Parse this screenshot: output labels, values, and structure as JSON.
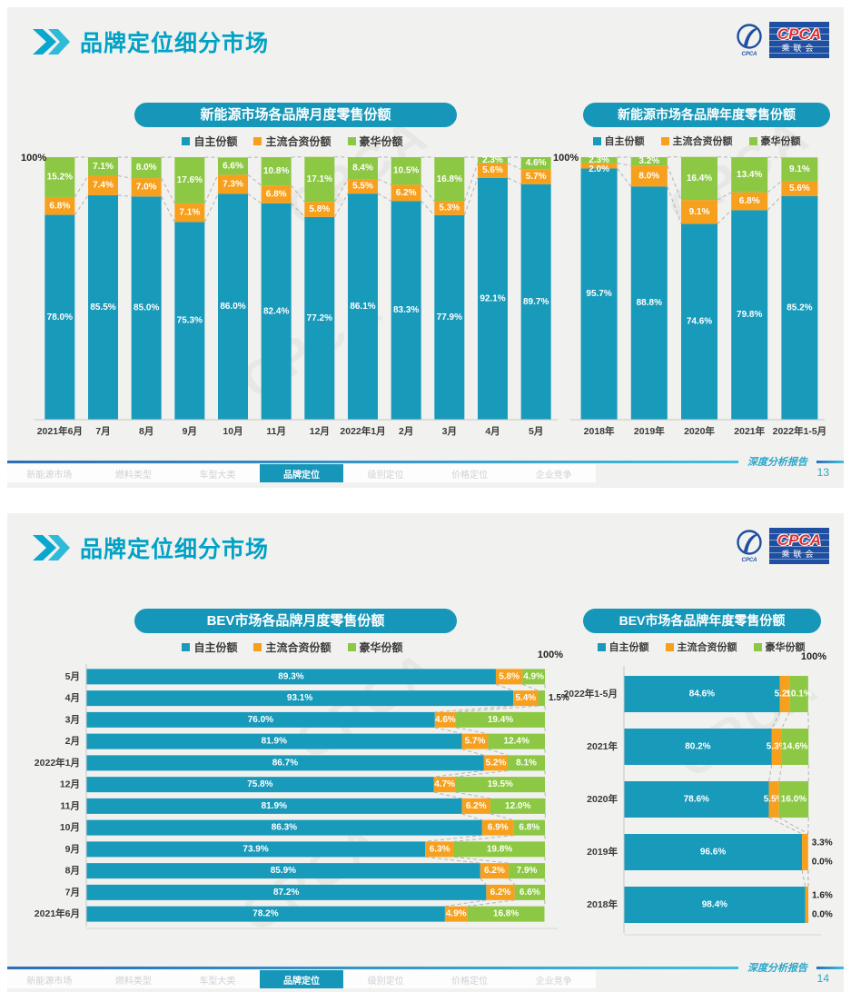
{
  "header": {
    "title": "品牌定位细分市场"
  },
  "logo": {
    "emblem_sub": "CPCA",
    "box_main": "CPCA",
    "box_sub": "乘联会"
  },
  "watermark": "CPCA",
  "legend": [
    "自主份额",
    "主流合资份额",
    "豪华份额"
  ],
  "colors": {
    "independent": "#189ABB",
    "joint_venture": "#F6A01E",
    "luxury": "#8CC843",
    "accent": "#00A2C6",
    "pill": "#1697B9",
    "footer_teal": "#2BA6C9",
    "logo_blue": "#1E4FA1"
  },
  "footer": {
    "report_label": "深度分析报告",
    "pages": [
      "13",
      "14"
    ],
    "nav_tabs": [
      "新能源市场",
      "燃料类型",
      "车型大类",
      "品牌定位",
      "级别定位",
      "价格定位",
      "企业竞争"
    ],
    "active_tab_index": 3
  },
  "chart_data": [
    {
      "id": "nev-monthly",
      "type": "bar",
      "stacked": true,
      "orientation": "vertical",
      "title": "新能源市场各品牌月度零售份额",
      "unit": "%",
      "ylim": [
        0,
        100
      ],
      "axis_top_label": "100%",
      "legend_position": "top",
      "categories": [
        "2021年6月",
        "7月",
        "8月",
        "9月",
        "10月",
        "11月",
        "12月",
        "2022年1月",
        "2月",
        "3月",
        "4月",
        "5月"
      ],
      "series": [
        {
          "name": "自主份额",
          "values": [
            78.0,
            85.5,
            85.0,
            75.3,
            86.0,
            82.4,
            77.2,
            86.1,
            83.3,
            77.9,
            92.1,
            89.7
          ]
        },
        {
          "name": "主流合资份额",
          "values": [
            6.8,
            7.4,
            7.0,
            7.1,
            7.3,
            6.8,
            5.8,
            5.5,
            6.2,
            5.3,
            5.6,
            5.7
          ]
        },
        {
          "name": "豪华份额",
          "values": [
            15.2,
            7.1,
            8.0,
            17.6,
            6.6,
            10.8,
            17.1,
            8.4,
            10.5,
            16.8,
            2.3,
            4.6
          ]
        }
      ]
    },
    {
      "id": "nev-yearly",
      "type": "bar",
      "stacked": true,
      "orientation": "vertical",
      "title": "新能源市场各品牌年度零售份额",
      "unit": "%",
      "ylim": [
        0,
        100
      ],
      "axis_top_label": "100%",
      "legend_position": "top",
      "categories": [
        "2018年",
        "2019年",
        "2020年",
        "2021年",
        "2022年1-5月"
      ],
      "series": [
        {
          "name": "自主份额",
          "values": [
            95.7,
            88.8,
            74.6,
            79.8,
            85.2
          ]
        },
        {
          "name": "主流合资份额",
          "values": [
            2.0,
            8.0,
            9.1,
            6.8,
            5.6
          ]
        },
        {
          "name": "豪华份额",
          "values": [
            2.3,
            3.2,
            16.4,
            13.4,
            9.1
          ]
        }
      ]
    },
    {
      "id": "bev-monthly",
      "type": "bar",
      "stacked": true,
      "orientation": "horizontal",
      "title": "BEV市场各品牌月度零售份额",
      "unit": "%",
      "xlim": [
        0,
        100
      ],
      "axis_top_label": "100%",
      "legend_position": "top",
      "categories": [
        "5月",
        "4月",
        "3月",
        "2月",
        "2022年1月",
        "12月",
        "11月",
        "10月",
        "9月",
        "8月",
        "7月",
        "2021年6月"
      ],
      "series": [
        {
          "name": "自主份额",
          "values": [
            89.3,
            93.1,
            76.0,
            81.9,
            86.7,
            75.8,
            81.9,
            86.3,
            73.9,
            85.9,
            87.2,
            78.2
          ]
        },
        {
          "name": "主流合资份额",
          "values": [
            5.8,
            5.4,
            4.6,
            5.7,
            5.2,
            4.7,
            6.2,
            6.9,
            6.3,
            6.2,
            6.2,
            4.9
          ]
        },
        {
          "name": "豪华份额",
          "values": [
            4.9,
            1.5,
            19.4,
            12.4,
            8.1,
            19.5,
            12.0,
            6.8,
            19.8,
            7.9,
            6.6,
            16.8
          ]
        }
      ]
    },
    {
      "id": "bev-yearly",
      "type": "bar",
      "stacked": true,
      "orientation": "horizontal",
      "title": "BEV市场各品牌年度零售份额",
      "unit": "%",
      "xlim": [
        0,
        100
      ],
      "axis_top_label": "100%",
      "legend_position": "top",
      "categories": [
        "2022年1-5月",
        "2021年",
        "2020年",
        "2019年",
        "2018年"
      ],
      "series": [
        {
          "name": "自主份额",
          "values": [
            84.6,
            80.2,
            78.6,
            96.6,
            98.4
          ]
        },
        {
          "name": "主流合资份额",
          "values": [
            5.2,
            5.3,
            5.5,
            3.3,
            1.6
          ]
        },
        {
          "name": "豪华份额",
          "values": [
            10.1,
            14.6,
            16.0,
            0.0,
            0.0
          ]
        }
      ]
    }
  ]
}
